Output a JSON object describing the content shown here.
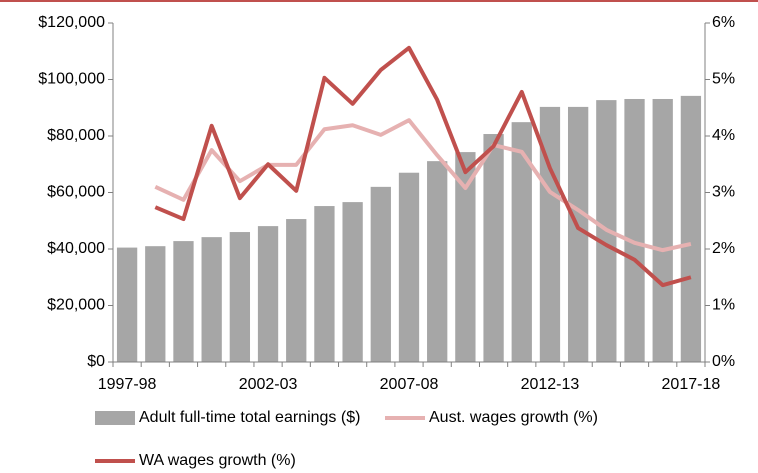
{
  "chart_data": {
    "type": "bar-line",
    "categories": [
      "1997-98",
      null,
      null,
      null,
      null,
      "2002-03",
      null,
      null,
      null,
      null,
      "2007-08",
      null,
      null,
      null,
      null,
      "2012-13",
      null,
      null,
      null,
      null,
      "2017-18"
    ],
    "series": [
      {
        "name": "Adult full-time total earnings ($)",
        "type": "bar",
        "color": "#a6a6a6",
        "axis": "y",
        "values": [
          40500,
          41000,
          42800,
          44200,
          46000,
          48100,
          50600,
          55200,
          56600,
          62000,
          67000,
          71100,
          74300,
          80700,
          84900,
          90300,
          90300,
          92700,
          93100,
          93100,
          94200
        ]
      },
      {
        "name": "Aust. wages growth (%)",
        "type": "line",
        "color": "#e6b1b1",
        "axis": "y2",
        "values": [
          null,
          3.1,
          2.87,
          3.75,
          3.2,
          3.49,
          3.49,
          4.12,
          4.19,
          4.02,
          4.28,
          3.66,
          3.08,
          3.84,
          3.72,
          3.01,
          2.69,
          2.34,
          2.11,
          1.98,
          2.09
        ]
      },
      {
        "name": "WA wages growth (%)",
        "type": "line",
        "color": "#c0504d",
        "axis": "y2",
        "values": [
          null,
          2.74,
          2.53,
          4.18,
          2.9,
          3.5,
          3.03,
          5.03,
          4.57,
          5.17,
          5.56,
          4.64,
          3.36,
          3.82,
          4.78,
          3.43,
          2.37,
          2.07,
          1.81,
          1.36,
          1.5
        ]
      }
    ],
    "ylim": [
      0,
      120000
    ],
    "yticks": [
      {
        "value": 0,
        "label": "$0"
      },
      {
        "value": 20000,
        "label": "$20,000"
      },
      {
        "value": 40000,
        "label": "$40,000"
      },
      {
        "value": 60000,
        "label": "$60,000"
      },
      {
        "value": 80000,
        "label": "$80,000"
      },
      {
        "value": 100000,
        "label": "$100,000"
      },
      {
        "value": 120000,
        "label": "$120,000"
      }
    ],
    "y2lim": [
      0,
      6
    ],
    "y2ticks": [
      {
        "value": 0,
        "label": "0%"
      },
      {
        "value": 1,
        "label": "1%"
      },
      {
        "value": 2,
        "label": "2%"
      },
      {
        "value": 3,
        "label": "3%"
      },
      {
        "value": 4,
        "label": "4%"
      },
      {
        "value": 5,
        "label": "5%"
      },
      {
        "value": 6,
        "label": "6%"
      }
    ],
    "legend": "bottom"
  }
}
